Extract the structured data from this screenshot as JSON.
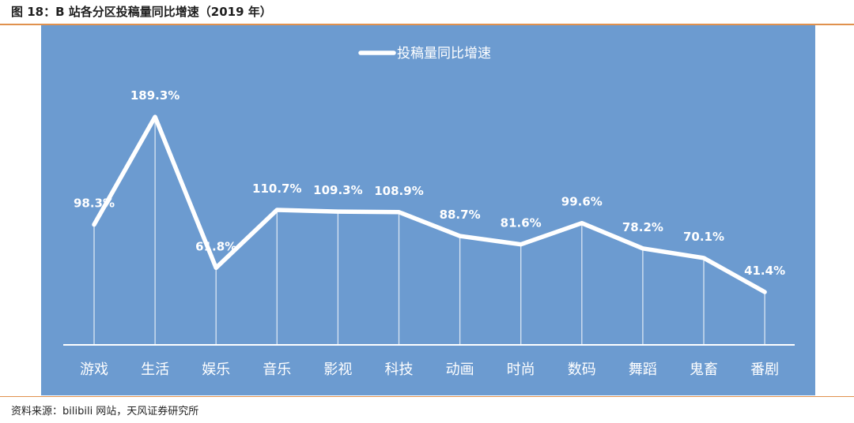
{
  "figure": {
    "title": "图 18：B 站各分区投稿量同比增速（2019 年）",
    "source": "资料来源：bilibili 网站，天风证券研究所"
  },
  "chart_data": {
    "type": "line",
    "categories": [
      "游戏",
      "生活",
      "娱乐",
      "音乐",
      "影视",
      "科技",
      "动画",
      "时尚",
      "数码",
      "舞蹈",
      "鬼畜",
      "番剧"
    ],
    "series": [
      {
        "name": "投稿量同比增速",
        "values": [
          98.3,
          189.3,
          61.8,
          110.7,
          109.3,
          108.9,
          88.7,
          81.6,
          99.6,
          78.2,
          70.1,
          41.4
        ],
        "labels": [
          "98.3%",
          "189.3%",
          "61.8%",
          "110.7%",
          "109.3%",
          "108.9%",
          "88.7%",
          "81.6%",
          "99.6%",
          "78.2%",
          "70.1%",
          "41.4%"
        ]
      }
    ],
    "value_suffix": "%",
    "y_axis_visible": false,
    "grid": false,
    "drop_lines": true,
    "legend_position": "top-center",
    "colors": {
      "background": "#6c9bd0",
      "line": "#ffffff",
      "text": "#ffffff",
      "rule": "#e0914e"
    }
  }
}
